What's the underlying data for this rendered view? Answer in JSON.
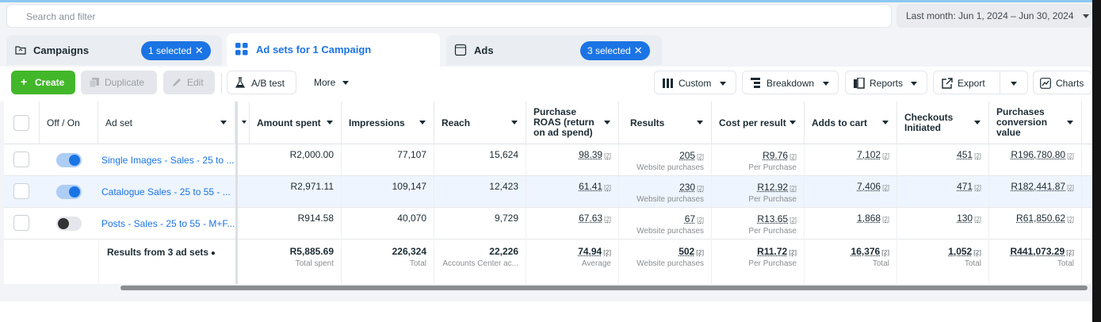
{
  "search": {
    "placeholder": "Search and filter"
  },
  "date_range": {
    "label": "Last month: Jun 1, 2024 – Jun 30, 2024"
  },
  "tabs": [
    {
      "label": "Campaigns",
      "pill": "1 selected",
      "icon": "folder-icon"
    },
    {
      "label": "Ad sets for 1 Campaign",
      "icon": "grid-icon",
      "active": true
    },
    {
      "label": "Ads",
      "pill": "3 selected",
      "icon": "square-icon"
    }
  ],
  "toolbar": {
    "create": "Create",
    "duplicate": "Duplicate",
    "edit": "Edit",
    "ab_test": "A/B test",
    "more": "More",
    "custom": "Custom",
    "breakdown": "Breakdown",
    "reports": "Reports",
    "export": "Export",
    "charts": "Charts"
  },
  "columns": {
    "off_on": "Off / On",
    "ad_set": "Ad set",
    "amount_spent": "Amount spent",
    "impressions": "Impressions",
    "reach": "Reach",
    "purchase_roas": [
      "Purchase",
      "ROAS (return",
      "on ad spend)"
    ],
    "results": "Results",
    "cost_per_result": "Cost per result",
    "adds_to_cart": "Adds to cart",
    "checkouts": [
      "Checkouts",
      "Initiated"
    ],
    "purchases_value": [
      "Purchases",
      "conversion",
      "value"
    ]
  },
  "rows": [
    {
      "on": true,
      "name": "Single Images - Sales - 25 to ...",
      "amount_spent": "R2,000.00",
      "impressions": "77,107",
      "reach": "15,624",
      "roas": "98.39",
      "results": "205",
      "results_sub": "Website purchases",
      "cost": "R9.76",
      "cost_sub": "Per Purchase",
      "adds": "7,102",
      "checkouts": "451",
      "value": "R196,780.80"
    },
    {
      "on": true,
      "name": "Catalogue Sales - 25 to 55 - ...",
      "amount_spent": "R2,971.11",
      "impressions": "109,147",
      "reach": "12,423",
      "roas": "61.41",
      "results": "230",
      "results_sub": "Website purchases",
      "cost": "R12.92",
      "cost_sub": "Per Purchase",
      "adds": "7,406",
      "checkouts": "471",
      "value": "R182,441.87"
    },
    {
      "on": false,
      "name": "Posts - Sales - 25 to 55 - M+F...",
      "amount_spent": "R914.58",
      "impressions": "40,070",
      "reach": "9,729",
      "roas": "67.63",
      "results": "67",
      "results_sub": "Website purchases",
      "cost": "R13.65",
      "cost_sub": "Per Purchase",
      "adds": "1,868",
      "checkouts": "130",
      "value": "R61,850.62"
    }
  ],
  "totals": {
    "label": "Results from 3 ad sets",
    "amount_spent": "R5,885.69",
    "amount_spent_sub": "Total spent",
    "impressions": "226,324",
    "impressions_sub": "Total",
    "reach": "22,226",
    "reach_sub": "Accounts Center ac...",
    "roas": "74.94",
    "roas_sub": "Average",
    "results": "502",
    "results_sub": "Website purchases",
    "cost": "R11.72",
    "cost_sub": "Per Purchase",
    "adds": "16,376",
    "adds_sub": "Total",
    "checkouts": "1,052",
    "checkouts_sub": "Total",
    "value": "R441,073.29",
    "value_sub": "Total"
  },
  "metric_tag": "[2]",
  "colors": {
    "accent": "#1b74e4",
    "create_green": "#42b72a",
    "toggle_off_knob": "#333333"
  }
}
